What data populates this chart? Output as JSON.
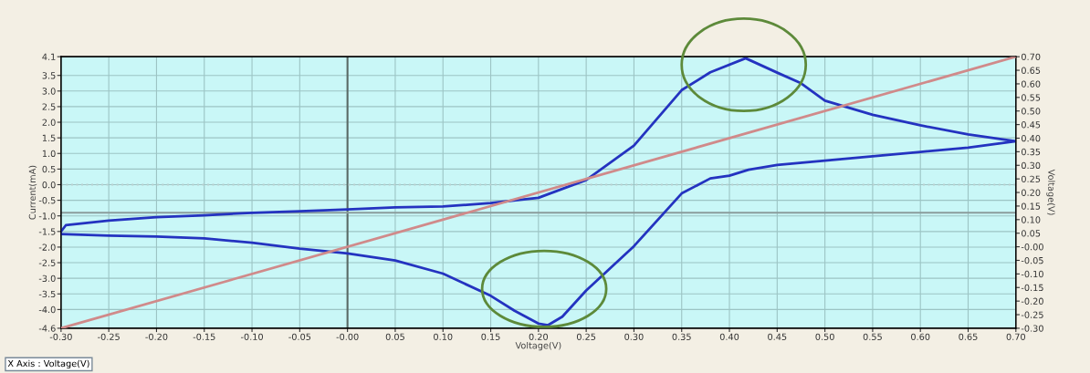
{
  "chart_data": {
    "type": "line",
    "xlabel": "Voltage(V)",
    "ylabel": "Current(mA)",
    "y2label": "Voltage(V)",
    "annotations": [
      "X Axis : Voltage(V)"
    ],
    "series": [
      {
        "color": "#2433c0",
        "x": [
          -0.3,
          -0.295,
          -0.25,
          -0.2,
          -0.15,
          -0.1,
          -0.05,
          0.0,
          0.05,
          0.1,
          0.15,
          0.2,
          0.25,
          0.3,
          0.35,
          0.38,
          0.417,
          0.45,
          0.475,
          0.5,
          0.55,
          0.6,
          0.65,
          0.7,
          0.65,
          0.6,
          0.55,
          0.5,
          0.45,
          0.42,
          0.4,
          0.38,
          0.35,
          0.3,
          0.25,
          0.225,
          0.21,
          0.2,
          0.175,
          0.15,
          0.1,
          0.05,
          0.0,
          -0.05,
          -0.1,
          -0.15,
          -0.2,
          -0.25,
          -0.3
        ],
        "values": [
          -1.5,
          -1.3,
          -1.15,
          -1.04,
          -0.98,
          -0.9,
          -0.85,
          -0.79,
          -0.73,
          -0.7,
          -0.59,
          -0.42,
          0.15,
          1.25,
          3.03,
          3.6,
          4.05,
          3.59,
          3.25,
          2.69,
          2.24,
          1.9,
          1.61,
          1.39,
          1.19,
          1.05,
          0.91,
          0.77,
          0.63,
          0.48,
          0.29,
          0.2,
          -0.28,
          -1.97,
          -3.39,
          -4.23,
          -4.5,
          -4.45,
          -4.04,
          -3.56,
          -2.85,
          -2.43,
          -2.2,
          -2.05,
          -1.86,
          -1.72,
          -1.66,
          -1.63,
          -1.58
        ]
      },
      {
        "color": "#d08a8a",
        "axis": "y2",
        "x": [
          -0.3,
          0.7
        ],
        "values": [
          -0.3,
          0.7
        ]
      }
    ],
    "xlim": [
      -0.3,
      0.7
    ],
    "xticks": [
      {
        "value": -0.3,
        "label": "-0.30"
      },
      {
        "value": -0.25,
        "label": "-0.25"
      },
      {
        "value": -0.2,
        "label": "-0.20"
      },
      {
        "value": -0.15,
        "label": "-0.15"
      },
      {
        "value": -0.1,
        "label": "-0.10"
      },
      {
        "value": -0.05,
        "label": "-0.05"
      },
      {
        "value": 0,
        "label": "-0.00"
      },
      {
        "value": 0.05,
        "label": "0.05"
      },
      {
        "value": 0.1,
        "label": "0.10"
      },
      {
        "value": 0.15,
        "label": "0.15"
      },
      {
        "value": 0.2,
        "label": "0.20"
      },
      {
        "value": 0.25,
        "label": "0.25"
      },
      {
        "value": 0.3,
        "label": "0.30"
      },
      {
        "value": 0.35,
        "label": "0.35"
      },
      {
        "value": 0.4,
        "label": "0.40"
      },
      {
        "value": 0.45,
        "label": "0.45"
      },
      {
        "value": 0.5,
        "label": "0.50"
      },
      {
        "value": 0.55,
        "label": "0.55"
      },
      {
        "value": 0.6,
        "label": "0.60"
      },
      {
        "value": 0.65,
        "label": "0.65"
      },
      {
        "value": 0.7,
        "label": "0.70"
      }
    ],
    "ylim": [
      -4.6,
      4.1
    ],
    "yticks": [
      {
        "value": 4.1,
        "label": "4.1"
      },
      {
        "value": 3.5,
        "label": "3.5"
      },
      {
        "value": 3,
        "label": "3.0"
      },
      {
        "value": 2.5,
        "label": "2.5"
      },
      {
        "value": 2,
        "label": "2.0"
      },
      {
        "value": 1.5,
        "label": "1.5"
      },
      {
        "value": 1,
        "label": "1.0"
      },
      {
        "value": 0.5,
        "label": "0.5"
      },
      {
        "value": 0,
        "label": "0.0"
      },
      {
        "value": -0.5,
        "label": "-0.5"
      },
      {
        "value": -1,
        "label": "-1.0"
      },
      {
        "value": -1.5,
        "label": "-1.5"
      },
      {
        "value": -2,
        "label": "-2.0"
      },
      {
        "value": -2.5,
        "label": "-2.5"
      },
      {
        "value": -3,
        "label": "-3.0"
      },
      {
        "value": -3.5,
        "label": "-3.5"
      },
      {
        "value": -4,
        "label": "-4.0"
      },
      {
        "value": -4.6,
        "label": "-4.6"
      }
    ],
    "y2lim": [
      -0.3,
      0.7
    ],
    "y2ticks": [
      {
        "value": 0.7,
        "label": "0.70"
      },
      {
        "value": 0.65,
        "label": "0.65"
      },
      {
        "value": 0.6,
        "label": "0.60"
      },
      {
        "value": 0.55,
        "label": "0.55"
      },
      {
        "value": 0.5,
        "label": "0.50"
      },
      {
        "value": 0.45,
        "label": "0.45"
      },
      {
        "value": 0.4,
        "label": "0.40"
      },
      {
        "value": 0.35,
        "label": "0.35"
      },
      {
        "value": 0.3,
        "label": "0.30"
      },
      {
        "value": 0.25,
        "label": "0.25"
      },
      {
        "value": 0.2,
        "label": "0.20"
      },
      {
        "value": 0.15,
        "label": "0.15"
      },
      {
        "value": 0.1,
        "label": "0.10"
      },
      {
        "value": 0.05,
        "label": "0.05"
      },
      {
        "value": 0,
        "label": "-0.00"
      },
      {
        "value": -0.05,
        "label": "-0.05"
      },
      {
        "value": -0.1,
        "label": "-0.10"
      },
      {
        "value": -0.15,
        "label": "-0.15"
      },
      {
        "value": -0.2,
        "label": "-0.20"
      },
      {
        "value": -0.25,
        "label": "-0.25"
      },
      {
        "value": -0.3,
        "label": "-0.30"
      }
    ],
    "ref_lines": [
      {
        "axis": "x",
        "value": 0,
        "color": "#5a6a66",
        "line_style": "solid"
      },
      {
        "axis": "y",
        "value": -0.9,
        "color": "#8a9c9c",
        "line_style": "solid"
      },
      {
        "axis": "y",
        "value": 0,
        "color": "#b8d0d0",
        "line_style": "dotted"
      }
    ],
    "grid": true,
    "legend": false,
    "marker": "none",
    "line_style": "solid"
  }
}
